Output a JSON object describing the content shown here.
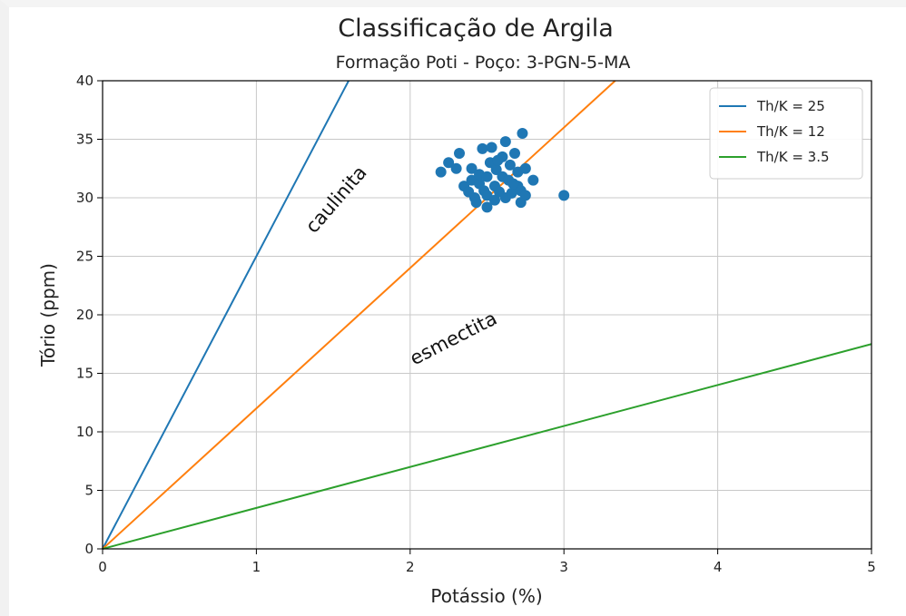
{
  "chart_data": {
    "type": "scatter",
    "title": "Classificação de Argila",
    "subtitle": "Formação Poti - Poço: 3-PGN-5-MA",
    "xlabel": "Potássio (%)",
    "ylabel": "Tório (ppm)",
    "xlim": [
      0,
      5
    ],
    "ylim": [
      0,
      40
    ],
    "xticks": [
      0,
      1,
      2,
      3,
      4,
      5
    ],
    "yticks": [
      0,
      5,
      10,
      15,
      20,
      25,
      30,
      35,
      40
    ],
    "grid": true,
    "legend_position": "top-right",
    "lines": [
      {
        "name": "Th/K = 25",
        "slope": 25,
        "color": "#1f77b4"
      },
      {
        "name": "Th/K = 12",
        "slope": 12,
        "color": "#ff7f0e"
      },
      {
        "name": "Th/K = 3.5",
        "slope": 3.5,
        "color": "#2ca02c"
      }
    ],
    "scatter_color": "#1f77b4",
    "points": [
      {
        "x": 2.2,
        "y": 32.2
      },
      {
        "x": 2.25,
        "y": 33.0
      },
      {
        "x": 2.3,
        "y": 32.5
      },
      {
        "x": 2.32,
        "y": 33.8
      },
      {
        "x": 2.35,
        "y": 31.0
      },
      {
        "x": 2.38,
        "y": 30.5
      },
      {
        "x": 2.4,
        "y": 31.5
      },
      {
        "x": 2.4,
        "y": 32.5
      },
      {
        "x": 2.42,
        "y": 30.0
      },
      {
        "x": 2.45,
        "y": 31.2
      },
      {
        "x": 2.45,
        "y": 32.0
      },
      {
        "x": 2.47,
        "y": 34.2
      },
      {
        "x": 2.48,
        "y": 30.6
      },
      {
        "x": 2.5,
        "y": 29.2
      },
      {
        "x": 2.5,
        "y": 30.2
      },
      {
        "x": 2.5,
        "y": 31.8
      },
      {
        "x": 2.52,
        "y": 33.0
      },
      {
        "x": 2.53,
        "y": 34.3
      },
      {
        "x": 2.55,
        "y": 29.8
      },
      {
        "x": 2.55,
        "y": 31.0
      },
      {
        "x": 2.56,
        "y": 32.4
      },
      {
        "x": 2.58,
        "y": 30.5
      },
      {
        "x": 2.6,
        "y": 31.8
      },
      {
        "x": 2.6,
        "y": 33.5
      },
      {
        "x": 2.62,
        "y": 34.8
      },
      {
        "x": 2.62,
        "y": 30.0
      },
      {
        "x": 2.64,
        "y": 31.5
      },
      {
        "x": 2.65,
        "y": 32.8
      },
      {
        "x": 2.66,
        "y": 30.4
      },
      {
        "x": 2.68,
        "y": 33.8
      },
      {
        "x": 2.7,
        "y": 31.0
      },
      {
        "x": 2.7,
        "y": 32.2
      },
      {
        "x": 2.72,
        "y": 29.6
      },
      {
        "x": 2.72,
        "y": 30.6
      },
      {
        "x": 2.73,
        "y": 35.5
      },
      {
        "x": 2.75,
        "y": 32.5
      },
      {
        "x": 2.75,
        "y": 30.2
      },
      {
        "x": 2.8,
        "y": 31.5
      },
      {
        "x": 3.0,
        "y": 30.2
      },
      {
        "x": 2.43,
        "y": 29.6
      },
      {
        "x": 2.57,
        "y": 33.2
      },
      {
        "x": 2.67,
        "y": 31.2
      }
    ],
    "annotations": [
      {
        "text": "caulinita",
        "x": 1.55,
        "y": 29.5,
        "angle": -49
      },
      {
        "text": "esmectita",
        "x": 2.3,
        "y": 17.5,
        "angle": -27
      }
    ]
  }
}
